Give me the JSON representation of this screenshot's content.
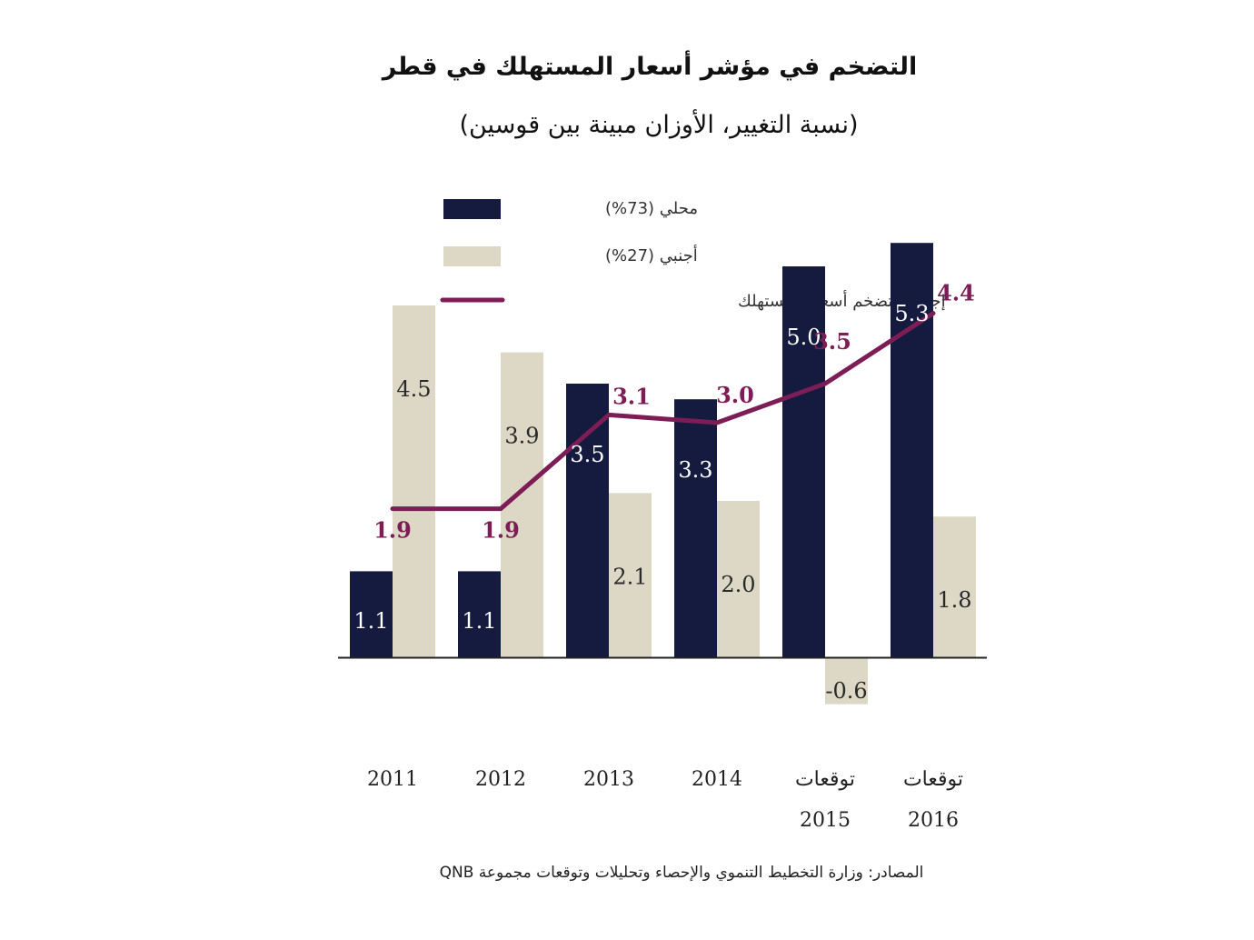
{
  "title": "التضخم في مؤشر أسعار المستهلك في قطر",
  "subtitle": "(نسبة التغيير، الأوزان مبينة بين قوسين)",
  "source": "المصادر: وزارة التخطيط التنموي والإحصاء وتحليلات وتوقعات مجموعة QNB",
  "colors": {
    "local": "#141b3f",
    "foreign": "#dcd8c5",
    "total": "#7d1d56",
    "local_label": "#ffffff",
    "foreign_label": "#2a2a2a"
  },
  "chart_data": {
    "type": "bar",
    "categories": [
      {
        "line1": "2011",
        "line2": ""
      },
      {
        "line1": "2012",
        "line2": ""
      },
      {
        "line1": "2013",
        "line2": ""
      },
      {
        "line1": "2014",
        "line2": ""
      },
      {
        "line1": "توقعات",
        "line2": "2015"
      },
      {
        "line1": "توقعات",
        "line2": "2016"
      }
    ],
    "series": [
      {
        "name": "محلي (73%)",
        "kind": "bar",
        "values": [
          1.1,
          1.1,
          3.5,
          3.3,
          5.0,
          5.3
        ]
      },
      {
        "name": "أجنبي (27%)",
        "kind": "bar",
        "values": [
          4.5,
          3.9,
          2.1,
          2.0,
          -0.6,
          1.8
        ]
      },
      {
        "name": "إجمالي تضخم أسعار المستهلك",
        "kind": "line",
        "values": [
          1.9,
          1.9,
          3.1,
          3.0,
          3.5,
          4.4
        ]
      }
    ],
    "legend_position": "top-center",
    "grid": false
  }
}
